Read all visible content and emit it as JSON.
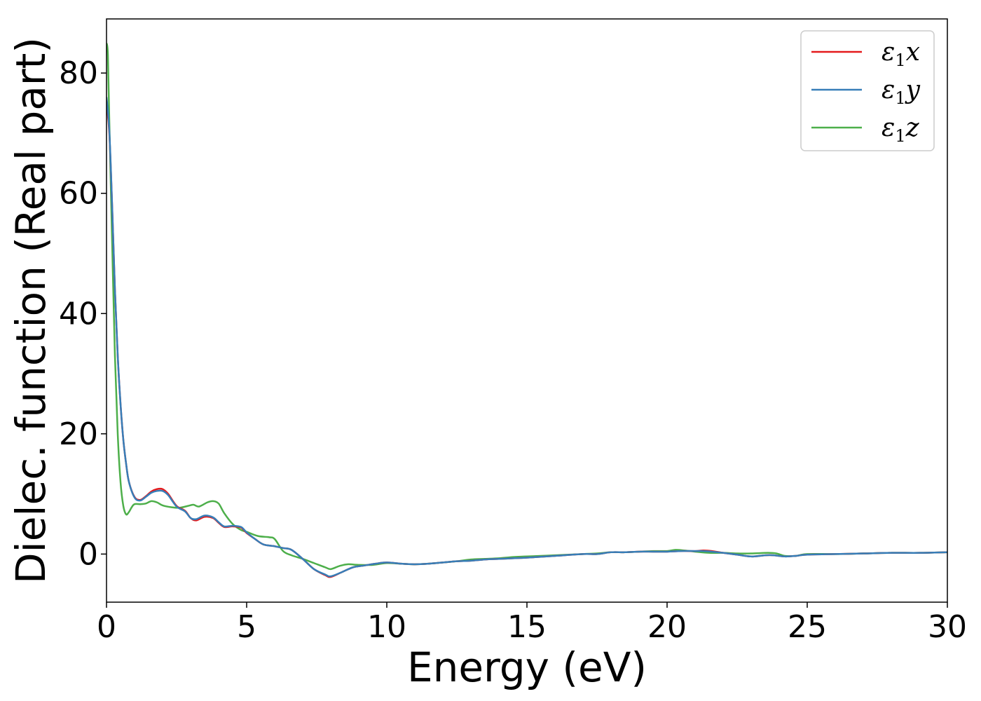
{
  "chart_data": {
    "type": "line",
    "title": "",
    "xlabel": "Energy (eV)",
    "ylabel": "Dielec. function (Real part)",
    "xlim": [
      0,
      30
    ],
    "ylim": [
      -8,
      89
    ],
    "xticks": [
      0,
      5,
      10,
      15,
      20,
      25,
      30
    ],
    "yticks": [
      0,
      20,
      40,
      60,
      80
    ],
    "grid": false,
    "legend_position": "top-right",
    "series": [
      {
        "name": "ε1x",
        "legend": {
          "base": "ε",
          "sub": "1",
          "var": "x"
        },
        "color": "#e41a1c",
        "x": [
          0,
          0.1,
          0.2,
          0.3,
          0.4,
          0.5,
          0.6,
          0.7,
          0.8,
          1.0,
          1.2,
          1.4,
          1.6,
          1.8,
          2.0,
          2.2,
          2.5,
          2.8,
          3.0,
          3.2,
          3.5,
          3.8,
          4.0,
          4.2,
          4.5,
          4.8,
          5.0,
          5.3,
          5.6,
          6.0,
          6.3,
          6.6,
          7.0,
          7.4,
          7.8,
          8.0,
          8.4,
          8.8,
          9.2,
          9.6,
          10.0,
          10.5,
          11.0,
          11.5,
          12.0,
          12.5,
          13.0,
          13.5,
          14.0,
          14.5,
          15.0,
          16.0,
          17.0,
          17.5,
          18.0,
          18.5,
          19.0,
          19.5,
          20.0,
          20.5,
          21.0,
          21.3,
          21.6,
          22.0,
          22.5,
          23.0,
          23.5,
          23.8,
          24.2,
          24.6,
          25.0,
          26.0,
          27.0,
          28.0,
          29.0,
          30.0
        ],
        "y": [
          75,
          70,
          58,
          44,
          33,
          25,
          19,
          15,
          12,
          9.5,
          9.0,
          9.6,
          10.4,
          10.8,
          10.8,
          10.0,
          8.0,
          7.2,
          6.0,
          5.6,
          6.2,
          6.0,
          5.2,
          4.5,
          4.6,
          4.4,
          3.5,
          2.5,
          1.6,
          1.3,
          1.0,
          0.7,
          -0.8,
          -2.5,
          -3.5,
          -3.8,
          -3.0,
          -2.2,
          -1.9,
          -1.6,
          -1.4,
          -1.6,
          -1.7,
          -1.6,
          -1.4,
          -1.2,
          -1.1,
          -0.9,
          -0.8,
          -0.7,
          -0.6,
          -0.3,
          0.0,
          0.0,
          0.3,
          0.3,
          0.4,
          0.4,
          0.4,
          0.5,
          0.5,
          0.6,
          0.5,
          0.2,
          -0.1,
          -0.4,
          -0.2,
          -0.2,
          -0.4,
          -0.3,
          -0.1,
          0.0,
          0.1,
          0.2,
          0.2,
          0.3
        ]
      },
      {
        "name": "ε1y",
        "legend": {
          "base": "ε",
          "sub": "1",
          "var": "y"
        },
        "color": "#377eb8",
        "x": [
          0,
          0.1,
          0.2,
          0.3,
          0.4,
          0.5,
          0.6,
          0.7,
          0.8,
          1.0,
          1.2,
          1.4,
          1.6,
          1.8,
          2.0,
          2.2,
          2.5,
          2.8,
          3.0,
          3.2,
          3.5,
          3.8,
          4.0,
          4.2,
          4.5,
          4.8,
          5.0,
          5.3,
          5.6,
          6.0,
          6.3,
          6.6,
          7.0,
          7.4,
          7.8,
          8.0,
          8.4,
          8.8,
          9.2,
          9.6,
          10.0,
          10.5,
          11.0,
          11.5,
          12.0,
          12.5,
          13.0,
          13.5,
          14.0,
          14.5,
          15.0,
          16.0,
          17.0,
          17.5,
          18.0,
          18.5,
          19.0,
          19.5,
          20.0,
          20.5,
          21.0,
          21.3,
          21.6,
          22.0,
          22.5,
          23.0,
          23.5,
          23.8,
          24.2,
          24.6,
          25.0,
          26.0,
          27.0,
          28.0,
          29.0,
          30.0
        ],
        "y": [
          76,
          70.5,
          58,
          44,
          33,
          25,
          19,
          15,
          12,
          9.4,
          8.9,
          9.5,
          10.2,
          10.5,
          10.5,
          9.8,
          7.9,
          7.1,
          6.0,
          5.8,
          6.4,
          6.1,
          5.3,
          4.6,
          4.7,
          4.5,
          3.6,
          2.5,
          1.6,
          1.3,
          1.0,
          0.7,
          -0.8,
          -2.5,
          -3.4,
          -3.7,
          -3.0,
          -2.2,
          -1.9,
          -1.6,
          -1.4,
          -1.6,
          -1.7,
          -1.6,
          -1.4,
          -1.2,
          -1.1,
          -0.9,
          -0.8,
          -0.7,
          -0.6,
          -0.3,
          0.0,
          0.0,
          0.3,
          0.3,
          0.4,
          0.4,
          0.4,
          0.5,
          0.5,
          0.5,
          0.4,
          0.2,
          -0.1,
          -0.4,
          -0.2,
          -0.2,
          -0.4,
          -0.3,
          -0.1,
          0.0,
          0.1,
          0.2,
          0.2,
          0.3
        ]
      },
      {
        "name": "ε1z",
        "legend": {
          "base": "ε",
          "sub": "1",
          "var": "z"
        },
        "color": "#4daf4a",
        "x": [
          0,
          0.05,
          0.1,
          0.2,
          0.3,
          0.4,
          0.5,
          0.6,
          0.7,
          0.8,
          0.9,
          1.0,
          1.2,
          1.4,
          1.6,
          1.8,
          2.0,
          2.3,
          2.6,
          2.9,
          3.1,
          3.3,
          3.6,
          3.8,
          4.0,
          4.2,
          4.5,
          4.8,
          5.0,
          5.4,
          5.8,
          6.0,
          6.3,
          6.6,
          7.0,
          7.4,
          7.8,
          8.0,
          8.3,
          8.6,
          9.0,
          9.5,
          10.0,
          10.5,
          11.0,
          11.5,
          12.0,
          12.5,
          13.0,
          13.5,
          14.0,
          14.5,
          15.0,
          16.0,
          17.0,
          17.5,
          18.0,
          18.5,
          19.0,
          19.5,
          20.0,
          20.3,
          20.6,
          21.0,
          21.5,
          22.0,
          22.5,
          23.0,
          23.6,
          23.9,
          24.2,
          24.6,
          25.0,
          26.0,
          27.0,
          28.0,
          29.0,
          30.0
        ],
        "y": [
          85,
          83,
          72,
          52,
          33,
          20,
          12,
          8,
          6.6,
          7.0,
          7.8,
          8.3,
          8.3,
          8.4,
          8.8,
          8.6,
          8.1,
          7.8,
          7.7,
          8.0,
          8.2,
          7.9,
          8.6,
          8.8,
          8.4,
          6.8,
          5.0,
          4.0,
          3.7,
          3.0,
          2.8,
          2.5,
          0.5,
          -0.2,
          -0.8,
          -1.5,
          -2.2,
          -2.5,
          -2.0,
          -1.7,
          -1.8,
          -1.8,
          -1.5,
          -1.6,
          -1.7,
          -1.6,
          -1.4,
          -1.2,
          -0.9,
          -0.8,
          -0.7,
          -0.5,
          -0.4,
          -0.2,
          0.0,
          0.1,
          0.3,
          0.3,
          0.4,
          0.5,
          0.5,
          0.7,
          0.6,
          0.4,
          0.2,
          0.2,
          0.1,
          0.1,
          0.2,
          0.1,
          -0.3,
          -0.3,
          0.0,
          0.0,
          0.1,
          0.2,
          0.2,
          0.3
        ]
      }
    ]
  }
}
